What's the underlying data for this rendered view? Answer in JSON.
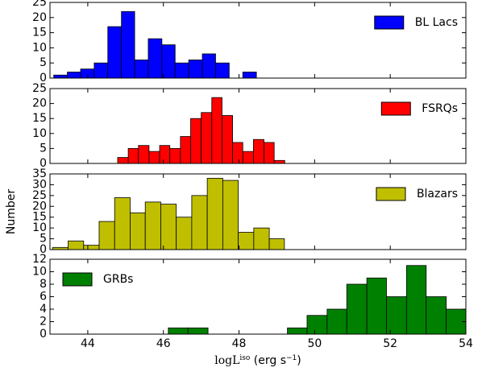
{
  "chart_data": [
    {
      "type": "histogram",
      "bins": [
        43.1,
        43.46,
        43.81,
        44.17,
        44.53,
        44.89,
        45.24,
        45.6,
        45.96,
        46.31,
        46.67,
        47.03,
        47.38,
        47.74,
        48.1,
        48.46
      ],
      "series": [
        {
          "name": "BL Lacs",
          "color": "#0000ff",
          "values": [
            1,
            2,
            3,
            5,
            17,
            22,
            6,
            13,
            11,
            5,
            6,
            8,
            5,
            0,
            2
          ]
        }
      ],
      "xlim": [
        43,
        54
      ],
      "xticks": [
        44,
        46,
        48,
        50,
        52,
        54
      ],
      "ylim": [
        0,
        25
      ],
      "yticks": [
        0,
        5,
        10,
        15,
        20,
        25
      ],
      "legend": "upper right"
    },
    {
      "type": "histogram",
      "bins": [
        44.79,
        45.07,
        45.34,
        45.62,
        45.9,
        46.17,
        46.45,
        46.72,
        47,
        47.28,
        47.55,
        47.83,
        48.1,
        48.38,
        48.66,
        48.93,
        49.21
      ],
      "series": [
        {
          "name": "FSRQs",
          "color": "#ff0000",
          "values": [
            2,
            5,
            6,
            4,
            6,
            5,
            9,
            15,
            17,
            22,
            16,
            7,
            4,
            8,
            7,
            1
          ]
        }
      ],
      "xlim": [
        43,
        54
      ],
      "xticks": [
        44,
        46,
        48,
        50,
        52,
        54
      ],
      "ylim": [
        0,
        25
      ],
      "yticks": [
        0,
        5,
        10,
        15,
        20,
        25
      ],
      "legend": "upper right"
    },
    {
      "type": "histogram",
      "bins": [
        43.07,
        43.48,
        43.89,
        44.3,
        44.71,
        45.12,
        45.52,
        45.93,
        46.34,
        46.75,
        47.16,
        47.57,
        47.98,
        48.39,
        48.8,
        49.2
      ],
      "series": [
        {
          "name": "Blazars",
          "color": "#bfbf00",
          "values": [
            1,
            4,
            2,
            13,
            24,
            17,
            22,
            21,
            15,
            25,
            33,
            32,
            8,
            10,
            5
          ]
        }
      ],
      "xlim": [
        43,
        54
      ],
      "xticks": [
        44,
        46,
        48,
        50,
        52,
        54
      ],
      "ylim": [
        0,
        35
      ],
      "yticks": [
        0,
        5,
        10,
        15,
        20,
        25,
        30,
        35
      ],
      "legend": "upper right",
      "ylabel": "Number"
    },
    {
      "type": "histogram",
      "bins": [
        46.13,
        46.65,
        47.18,
        47.7,
        48.23,
        48.75,
        49.28,
        49.8,
        50.33,
        50.85,
        51.38,
        51.9,
        52.43,
        52.95,
        53.48,
        54.0
      ],
      "series": [
        {
          "name": "GRBs",
          "color": "#008000",
          "values": [
            1,
            1,
            0,
            0,
            0,
            0,
            1,
            3,
            4,
            8,
            9,
            6,
            11,
            6,
            4
          ]
        }
      ],
      "xlim": [
        43,
        54
      ],
      "xticks": [
        44,
        46,
        48,
        50,
        52,
        54
      ],
      "ylim": [
        0,
        12
      ],
      "yticks": [
        0,
        2,
        4,
        6,
        8,
        10,
        12
      ],
      "legend": "upper left",
      "xlabel": [
        "logL",
        "iso",
        " (erg s",
        "−1",
        ")"
      ]
    }
  ]
}
